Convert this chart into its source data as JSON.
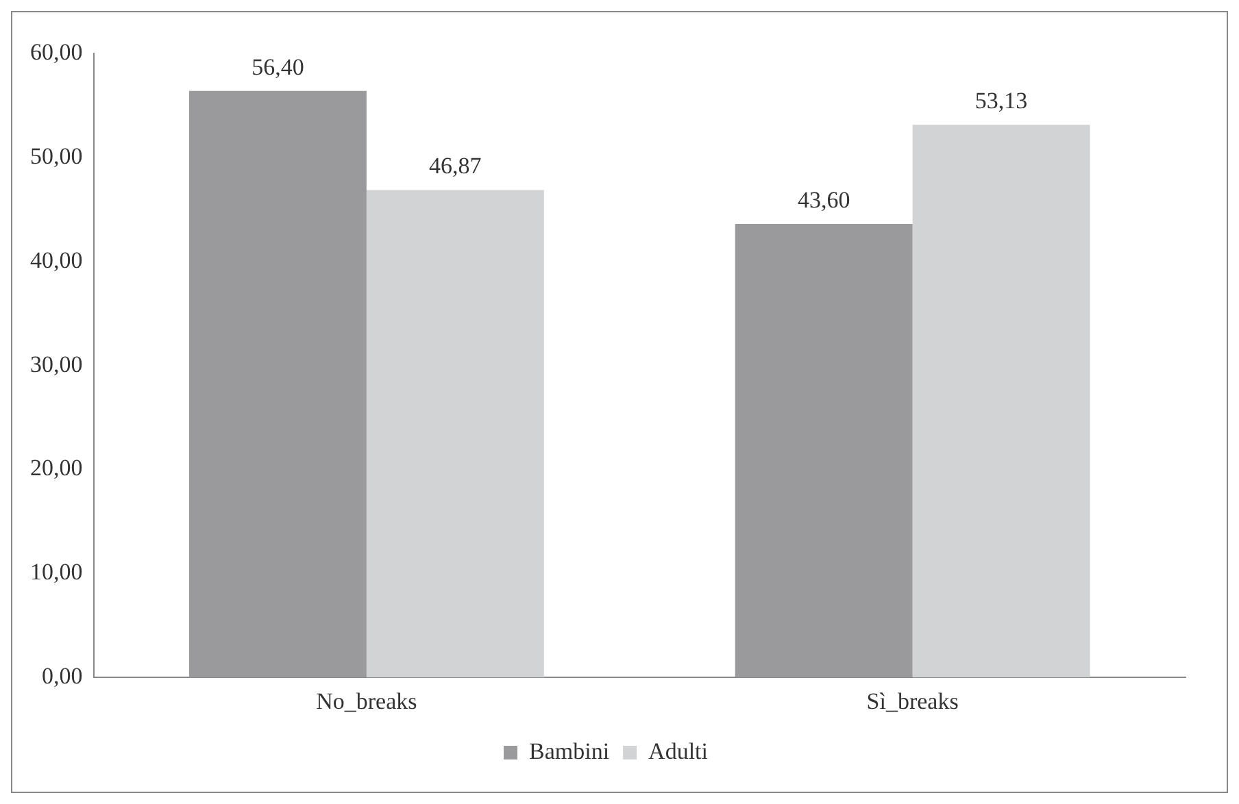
{
  "chart_data": {
    "type": "bar",
    "categories": [
      "No_breaks",
      "Sì_breaks"
    ],
    "series": [
      {
        "name": "Bambini",
        "color": "#9a9a9c",
        "values": [
          56.4,
          43.6
        ],
        "value_labels": [
          "56,40",
          "43,60"
        ]
      },
      {
        "name": "Adulti",
        "color": "#d2d3d5",
        "values": [
          46.87,
          53.13
        ],
        "value_labels": [
          "46,87",
          "53,13"
        ]
      }
    ],
    "ylim": [
      0,
      60
    ],
    "yticks": [
      {
        "value": 0,
        "label": "0,00"
      },
      {
        "value": 10,
        "label": "10,00"
      },
      {
        "value": 20,
        "label": "20,00"
      },
      {
        "value": 30,
        "label": "30,00"
      },
      {
        "value": 40,
        "label": "40,00"
      },
      {
        "value": 50,
        "label": "50,00"
      },
      {
        "value": 60,
        "label": "60,00"
      }
    ],
    "grid": false,
    "legend": "bottom"
  }
}
